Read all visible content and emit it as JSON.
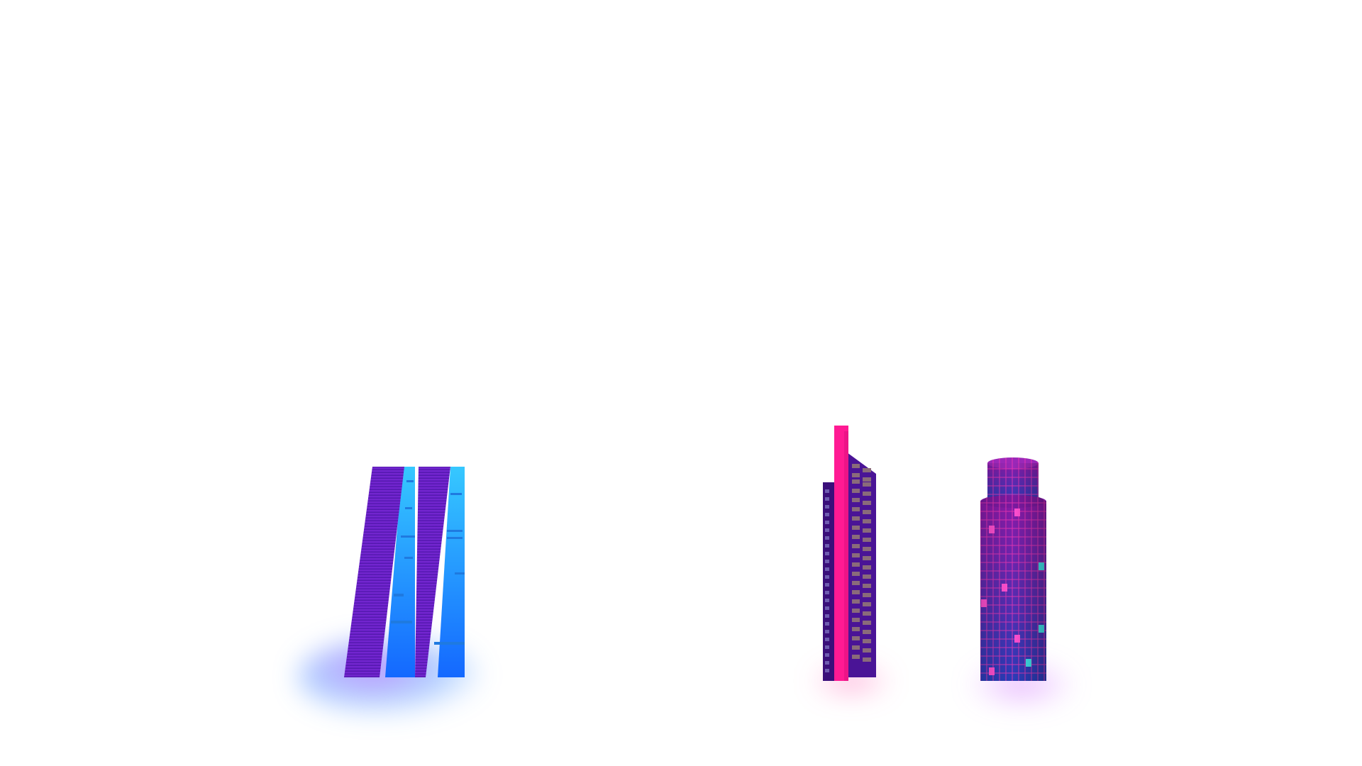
{
  "scene": {
    "title": "",
    "background_color": "#ffffff",
    "buildings": [
      {
        "name": "twin-slanted-tower",
        "colors": {
          "facade_purple": "#6a22c8",
          "facade_purple_dark": "#4b16a0",
          "glass_light": "#33c4ff",
          "glass_deep": "#1a6cff",
          "stripe": "#1f7ae0",
          "glow": "#8a3cff"
        }
      },
      {
        "name": "spire-office-tower",
        "colors": {
          "spire": "#ff1a93",
          "facade": "#4a1496",
          "facade_side": "#3a0f7a",
          "window": "#8a6b7a",
          "side_window": "#6e5bb0",
          "glow": "#ff3aa0"
        }
      },
      {
        "name": "cylindrical-tower",
        "colors": {
          "body_top": "#8a1aa8",
          "body_bottom": "#2a3cb8",
          "grid": "#ff3ab4",
          "window_pink": "#ff4fd0",
          "window_cyan": "#3fe0e8",
          "glow": "#c040ff"
        }
      }
    ]
  }
}
